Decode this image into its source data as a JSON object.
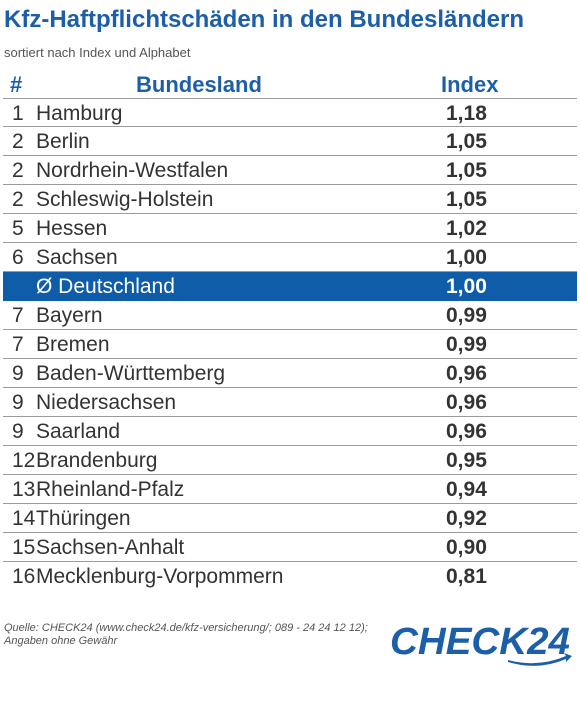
{
  "title": "Kfz-Haftpflichtschäden in den Bundesländern",
  "subtitle": "sortiert nach Index und Alphabet",
  "columns": {
    "rank": "#",
    "land": "Bundesland",
    "index": "Index"
  },
  "rows": [
    {
      "rank": "1",
      "land": "Hamburg",
      "index": "1,18"
    },
    {
      "rank": "2",
      "land": "Berlin",
      "index": "1,05"
    },
    {
      "rank": "2",
      "land": "Nordrhein-Westfalen",
      "index": "1,05"
    },
    {
      "rank": "2",
      "land": "Schleswig-Holstein",
      "index": "1,05"
    },
    {
      "rank": "5",
      "land": "Hessen",
      "index": "1,02"
    },
    {
      "rank": "6",
      "land": "Sachsen",
      "index": "1,00"
    },
    {
      "rank": "",
      "land": "Ø Deutschland",
      "index": "1,00",
      "highlight": true
    },
    {
      "rank": "7",
      "land": "Bayern",
      "index": "0,99"
    },
    {
      "rank": "7",
      "land": "Bremen",
      "index": "0,99"
    },
    {
      "rank": "9",
      "land": "Baden-Württemberg",
      "index": "0,96"
    },
    {
      "rank": "9",
      "land": "Niedersachsen",
      "index": "0,96"
    },
    {
      "rank": "9",
      "land": "Saarland",
      "index": "0,96"
    },
    {
      "rank": "12",
      "land": "Brandenburg",
      "index": "0,95"
    },
    {
      "rank": "13",
      "land": "Rheinland-Pfalz",
      "index": "0,94"
    },
    {
      "rank": "14",
      "land": "Thüringen",
      "index": "0,92"
    },
    {
      "rank": "15",
      "land": "Sachsen-Anhalt",
      "index": "0,90"
    },
    {
      "rank": "16",
      "land": "Mecklenburg-Vorpommern",
      "index": "0,81"
    }
  ],
  "source": "Quelle: CHECK24 (www.check24.de/kfz-versicherung/; 089 - 24 24 12 12); Angaben ohne Gewähr",
  "logo": {
    "text": "CHECK24",
    "color": "#1c5fa8"
  },
  "colors": {
    "accent": "#1c5fa8",
    "highlight_bg": "#0f5ca8"
  }
}
